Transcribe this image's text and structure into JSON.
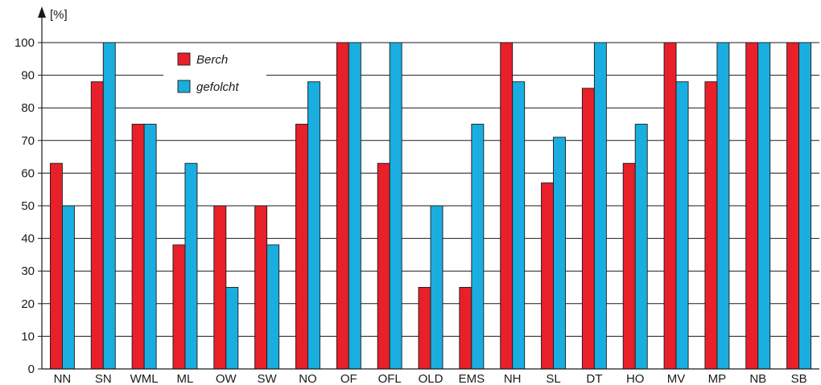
{
  "chart_data": {
    "type": "bar",
    "ylabel": "[%]",
    "xlabel": "",
    "title": "",
    "ylim": [
      0,
      100
    ],
    "yticks": [
      0,
      10,
      20,
      30,
      40,
      50,
      60,
      70,
      80,
      90,
      100
    ],
    "grid": true,
    "legend_position": "top-left",
    "categories": [
      "NN",
      "SN",
      "WML",
      "ML",
      "OW",
      "SW",
      "NO",
      "OF",
      "OFL",
      "OLD",
      "EMS",
      "NH",
      "SL",
      "DT",
      "HO",
      "MV",
      "MP",
      "NB",
      "SB"
    ],
    "series": [
      {
        "name": "Berch",
        "color": "#e8202a",
        "values": [
          63,
          88,
          75,
          38,
          50,
          50,
          75,
          100,
          63,
          25,
          25,
          100,
          57,
          86,
          63,
          100,
          88,
          100,
          100
        ]
      },
      {
        "name": "gefolcht",
        "color": "#1aaee0",
        "values": [
          50,
          100,
          75,
          63,
          25,
          38,
          88,
          100,
          100,
          50,
          75,
          88,
          71,
          100,
          75,
          88,
          100,
          100,
          100
        ]
      }
    ]
  }
}
